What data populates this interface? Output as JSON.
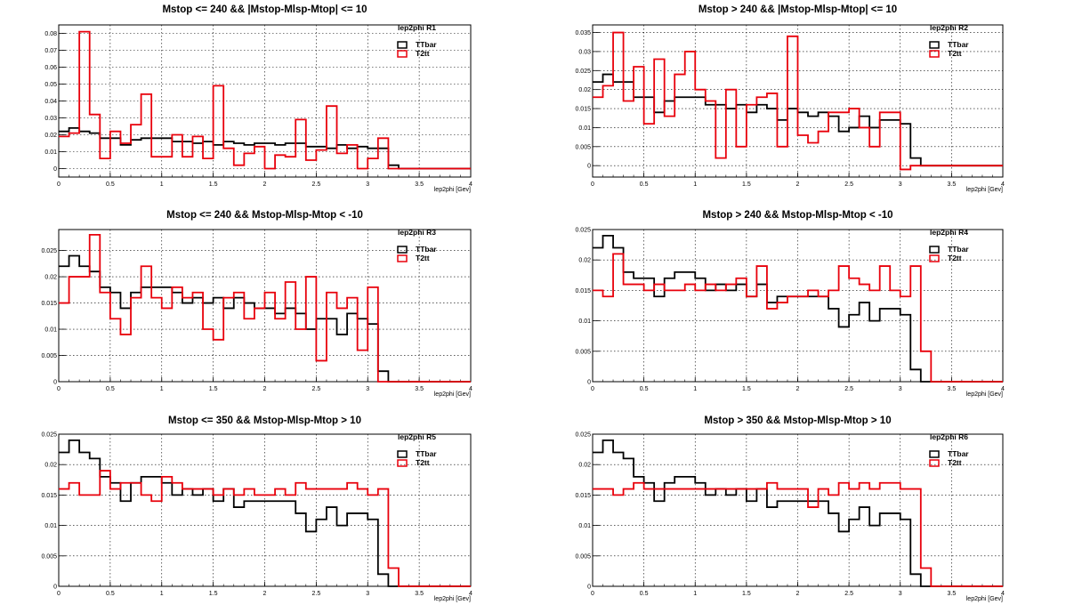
{
  "colors": {
    "TTbar": "#000000",
    "T2tt": "#e8000b",
    "grid": "#000000",
    "frame": "#000000"
  },
  "chart_data": [
    {
      "type": "line",
      "drawstyle": "histogram-step",
      "title": "Mstop <= 240 && |Mstop-Mlsp-Mtop| <= 10",
      "stats_label": "lep2phi  R1",
      "xlabel": "lep2phi [Gev]",
      "ylabel": "",
      "xlim": [
        0,
        4
      ],
      "ylim": [
        -0.005,
        0.085
      ],
      "xticks": [
        "0",
        "0.5",
        "1",
        "1.5",
        "2",
        "2.5",
        "3",
        "3.5",
        "4"
      ],
      "yticks": [
        "0",
        "0.01",
        "0.02",
        "0.03",
        "0.04",
        "0.05",
        "0.06",
        "0.07",
        "0.08"
      ],
      "grid": true,
      "legend_position": "top-right",
      "bin_edges": [
        0,
        0.1,
        0.2,
        0.3,
        0.4,
        0.5,
        0.6,
        0.7,
        0.8,
        0.9,
        1.0,
        1.1,
        1.2,
        1.3,
        1.4,
        1.5,
        1.6,
        1.7,
        1.8,
        1.9,
        2.0,
        2.1,
        2.2,
        2.3,
        2.4,
        2.5,
        2.6,
        2.7,
        2.8,
        2.9,
        3.0,
        3.1,
        3.2,
        3.3,
        3.4,
        3.5,
        3.6,
        3.7,
        3.8,
        3.9,
        4.0
      ],
      "series": [
        {
          "name": "TTbar",
          "values": [
            0.022,
            0.024,
            0.022,
            0.021,
            0.018,
            0.018,
            0.014,
            0.017,
            0.018,
            0.018,
            0.018,
            0.016,
            0.016,
            0.015,
            0.016,
            0.014,
            0.016,
            0.015,
            0.014,
            0.015,
            0.015,
            0.014,
            0.015,
            0.015,
            0.013,
            0.013,
            0.012,
            0.014,
            0.012,
            0.013,
            0.012,
            0.012,
            0.002,
            0,
            0,
            0,
            0,
            0,
            0,
            0
          ]
        },
        {
          "name": "T2tt",
          "values": [
            0.019,
            0.021,
            0.081,
            0.032,
            0.006,
            0.022,
            0.015,
            0.026,
            0.044,
            0.007,
            0.007,
            0.02,
            0.007,
            0.019,
            0.006,
            0.049,
            0.012,
            0.002,
            0.009,
            0.013,
            0.0,
            0.008,
            0.007,
            0.029,
            0.005,
            0.011,
            0.037,
            0.009,
            0.014,
            0.0,
            0.006,
            0.018,
            0,
            0,
            0,
            0,
            0,
            0,
            0,
            0
          ]
        }
      ]
    },
    {
      "type": "line",
      "drawstyle": "histogram-step",
      "title": "Mstop > 240 && |Mstop-Mlsp-Mtop| <= 10",
      "stats_label": "lep2phi  R2",
      "xlabel": "lep2phi [Gev]",
      "ylabel": "",
      "xlim": [
        0,
        4
      ],
      "ylim": [
        -0.003,
        0.037
      ],
      "xticks": [
        "0",
        "0.5",
        "1",
        "1.5",
        "2",
        "2.5",
        "3",
        "3.5",
        "4"
      ],
      "yticks": [
        "0",
        "0.005",
        "0.01",
        "0.015",
        "0.02",
        "0.025",
        "0.03",
        "0.035"
      ],
      "grid": true,
      "legend_position": "top-right",
      "bin_edges": [
        0,
        0.1,
        0.2,
        0.3,
        0.4,
        0.5,
        0.6,
        0.7,
        0.8,
        0.9,
        1.0,
        1.1,
        1.2,
        1.3,
        1.4,
        1.5,
        1.6,
        1.7,
        1.8,
        1.9,
        2.0,
        2.1,
        2.2,
        2.3,
        2.4,
        2.5,
        2.6,
        2.7,
        2.8,
        2.9,
        3.0,
        3.1,
        3.2,
        3.3,
        3.4,
        3.5,
        3.6,
        3.7,
        3.8,
        3.9,
        4.0
      ],
      "series": [
        {
          "name": "TTbar",
          "values": [
            0.022,
            0.024,
            0.022,
            0.022,
            0.018,
            0.018,
            0.014,
            0.017,
            0.018,
            0.018,
            0.018,
            0.016,
            0.016,
            0.015,
            0.016,
            0.014,
            0.016,
            0.015,
            0.012,
            0.015,
            0.014,
            0.013,
            0.014,
            0.013,
            0.009,
            0.01,
            0.013,
            0.01,
            0.012,
            0.012,
            0.011,
            0.002,
            0,
            0,
            0,
            0,
            0,
            0,
            0,
            0
          ]
        },
        {
          "name": "T2tt",
          "values": [
            0.018,
            0.021,
            0.035,
            0.017,
            0.026,
            0.011,
            0.028,
            0.013,
            0.024,
            0.03,
            0.02,
            0.017,
            0.002,
            0.02,
            0.005,
            0.016,
            0.018,
            0.019,
            0.005,
            0.034,
            0.008,
            0.006,
            0.009,
            0.014,
            0.014,
            0.015,
            0.01,
            0.005,
            0.014,
            0.014,
            -0.001,
            0,
            0,
            0,
            0,
            0,
            0,
            0,
            0,
            0
          ]
        }
      ]
    },
    {
      "type": "line",
      "drawstyle": "histogram-step",
      "title": "Mstop <= 240 && Mstop-Mlsp-Mtop < -10",
      "stats_label": "lep2phi  R3",
      "xlabel": "lep2phi [Gev]",
      "ylabel": "",
      "xlim": [
        0,
        4
      ],
      "ylim": [
        0,
        0.029
      ],
      "xticks": [
        "0",
        "0.5",
        "1",
        "1.5",
        "2",
        "2.5",
        "3",
        "3.5",
        "4"
      ],
      "yticks": [
        "0",
        "0.005",
        "0.01",
        "0.015",
        "0.02",
        "0.025"
      ],
      "grid": true,
      "legend_position": "top-right",
      "bin_edges": [
        0,
        0.1,
        0.2,
        0.3,
        0.4,
        0.5,
        0.6,
        0.7,
        0.8,
        0.9,
        1.0,
        1.1,
        1.2,
        1.3,
        1.4,
        1.5,
        1.6,
        1.7,
        1.8,
        1.9,
        2.0,
        2.1,
        2.2,
        2.3,
        2.4,
        2.5,
        2.6,
        2.7,
        2.8,
        2.9,
        3.0,
        3.1,
        3.2,
        3.3,
        3.4,
        3.5,
        3.6,
        3.7,
        3.8,
        3.9,
        4.0
      ],
      "series": [
        {
          "name": "TTbar",
          "values": [
            0.022,
            0.024,
            0.022,
            0.021,
            0.018,
            0.017,
            0.014,
            0.017,
            0.018,
            0.018,
            0.018,
            0.017,
            0.015,
            0.016,
            0.015,
            0.016,
            0.014,
            0.016,
            0.015,
            0.014,
            0.014,
            0.013,
            0.014,
            0.013,
            0.01,
            0.012,
            0.012,
            0.009,
            0.013,
            0.012,
            0.011,
            0.002,
            0,
            0,
            0,
            0,
            0,
            0,
            0,
            0
          ]
        },
        {
          "name": "T2tt",
          "values": [
            0.015,
            0.02,
            0.02,
            0.028,
            0.017,
            0.012,
            0.009,
            0.016,
            0.022,
            0.016,
            0.014,
            0.018,
            0.016,
            0.017,
            0.01,
            0.008,
            0.016,
            0.017,
            0.012,
            0.014,
            0.017,
            0.012,
            0.019,
            0.01,
            0.02,
            0.004,
            0.017,
            0.014,
            0.016,
            0.006,
            0.018,
            0,
            0,
            0,
            0,
            0,
            0,
            0,
            0,
            0
          ]
        }
      ]
    },
    {
      "type": "line",
      "drawstyle": "histogram-step",
      "title": "Mstop > 240 && Mstop-Mlsp-Mtop < -10",
      "stats_label": "lep2phi  R4",
      "xlabel": "lep2phi [Gev]",
      "ylabel": "",
      "xlim": [
        0,
        4
      ],
      "ylim": [
        0,
        0.025
      ],
      "xticks": [
        "0",
        "0.5",
        "1",
        "1.5",
        "2",
        "2.5",
        "3",
        "3.5",
        "4"
      ],
      "yticks": [
        "0",
        "0.005",
        "0.01",
        "0.015",
        "0.02",
        "0.025"
      ],
      "grid": true,
      "legend_position": "top-right",
      "bin_edges": [
        0,
        0.1,
        0.2,
        0.3,
        0.4,
        0.5,
        0.6,
        0.7,
        0.8,
        0.9,
        1.0,
        1.1,
        1.2,
        1.3,
        1.4,
        1.5,
        1.6,
        1.7,
        1.8,
        1.9,
        2.0,
        2.1,
        2.2,
        2.3,
        2.4,
        2.5,
        2.6,
        2.7,
        2.8,
        2.9,
        3.0,
        3.1,
        3.2,
        3.3,
        3.4,
        3.5,
        3.6,
        3.7,
        3.8,
        3.9,
        4.0
      ],
      "series": [
        {
          "name": "TTbar",
          "values": [
            0.022,
            0.024,
            0.022,
            0.018,
            0.017,
            0.017,
            0.014,
            0.017,
            0.018,
            0.018,
            0.017,
            0.015,
            0.016,
            0.015,
            0.016,
            0.014,
            0.016,
            0.013,
            0.014,
            0.014,
            0.014,
            0.014,
            0.014,
            0.012,
            0.009,
            0.011,
            0.013,
            0.01,
            0.012,
            0.012,
            0.011,
            0.002,
            0,
            0,
            0,
            0,
            0,
            0,
            0,
            0
          ]
        },
        {
          "name": "T2tt",
          "values": [
            0.015,
            0.014,
            0.021,
            0.016,
            0.016,
            0.015,
            0.016,
            0.015,
            0.015,
            0.016,
            0.015,
            0.016,
            0.015,
            0.016,
            0.017,
            0.014,
            0.019,
            0.012,
            0.013,
            0.014,
            0.014,
            0.015,
            0.014,
            0.015,
            0.019,
            0.017,
            0.016,
            0.015,
            0.019,
            0.015,
            0.014,
            0.019,
            0.005,
            0,
            0,
            0,
            0,
            0,
            0,
            0
          ]
        }
      ]
    },
    {
      "type": "line",
      "drawstyle": "histogram-step",
      "title": "Mstop <= 350 && Mstop-Mlsp-Mtop > 10",
      "stats_label": "lep2phi  R5",
      "xlabel": "lep2phi [Gev]",
      "ylabel": "",
      "xlim": [
        0,
        4
      ],
      "ylim": [
        0,
        0.025
      ],
      "xticks": [
        "0",
        "0.5",
        "1",
        "1.5",
        "2",
        "2.5",
        "3",
        "3.5",
        "4"
      ],
      "yticks": [
        "0",
        "0.005",
        "0.01",
        "0.015",
        "0.02",
        "0.025"
      ],
      "grid": true,
      "legend_position": "top-right",
      "bin_edges": [
        0,
        0.1,
        0.2,
        0.3,
        0.4,
        0.5,
        0.6,
        0.7,
        0.8,
        0.9,
        1.0,
        1.1,
        1.2,
        1.3,
        1.4,
        1.5,
        1.6,
        1.7,
        1.8,
        1.9,
        2.0,
        2.1,
        2.2,
        2.3,
        2.4,
        2.5,
        2.6,
        2.7,
        2.8,
        2.9,
        3.0,
        3.1,
        3.2,
        3.3,
        3.4,
        3.5,
        3.6,
        3.7,
        3.8,
        3.9,
        4.0
      ],
      "series": [
        {
          "name": "TTbar",
          "values": [
            0.022,
            0.024,
            0.022,
            0.021,
            0.018,
            0.017,
            0.014,
            0.017,
            0.018,
            0.018,
            0.017,
            0.015,
            0.016,
            0.015,
            0.016,
            0.014,
            0.016,
            0.013,
            0.014,
            0.014,
            0.014,
            0.014,
            0.014,
            0.012,
            0.009,
            0.011,
            0.013,
            0.01,
            0.012,
            0.012,
            0.011,
            0.002,
            0,
            0,
            0,
            0,
            0,
            0,
            0,
            0
          ]
        },
        {
          "name": "T2tt",
          "values": [
            0.016,
            0.017,
            0.015,
            0.015,
            0.019,
            0.016,
            0.017,
            0.017,
            0.015,
            0.014,
            0.018,
            0.017,
            0.016,
            0.016,
            0.016,
            0.015,
            0.016,
            0.015,
            0.016,
            0.015,
            0.015,
            0.016,
            0.015,
            0.017,
            0.016,
            0.016,
            0.016,
            0.016,
            0.017,
            0.016,
            0.015,
            0.016,
            0.003,
            0,
            0,
            0,
            0,
            0,
            0,
            0
          ]
        }
      ]
    },
    {
      "type": "line",
      "drawstyle": "histogram-step",
      "title": "Mstop > 350 && Mstop-Mlsp-Mtop > 10",
      "stats_label": "lep2phi  R6",
      "xlabel": "lep2phi [Gev]",
      "ylabel": "",
      "xlim": [
        0,
        4
      ],
      "ylim": [
        0,
        0.025
      ],
      "xticks": [
        "0",
        "0.5",
        "1",
        "1.5",
        "2",
        "2.5",
        "3",
        "3.5",
        "4"
      ],
      "yticks": [
        "0",
        "0.005",
        "0.01",
        "0.015",
        "0.02",
        "0.025"
      ],
      "grid": true,
      "legend_position": "top-right",
      "bin_edges": [
        0,
        0.1,
        0.2,
        0.3,
        0.4,
        0.5,
        0.6,
        0.7,
        0.8,
        0.9,
        1.0,
        1.1,
        1.2,
        1.3,
        1.4,
        1.5,
        1.6,
        1.7,
        1.8,
        1.9,
        2.0,
        2.1,
        2.2,
        2.3,
        2.4,
        2.5,
        2.6,
        2.7,
        2.8,
        2.9,
        3.0,
        3.1,
        3.2,
        3.3,
        3.4,
        3.5,
        3.6,
        3.7,
        3.8,
        3.9,
        4.0
      ],
      "series": [
        {
          "name": "TTbar",
          "values": [
            0.022,
            0.024,
            0.022,
            0.021,
            0.018,
            0.017,
            0.014,
            0.017,
            0.018,
            0.018,
            0.017,
            0.015,
            0.016,
            0.015,
            0.016,
            0.014,
            0.016,
            0.013,
            0.014,
            0.014,
            0.014,
            0.014,
            0.014,
            0.012,
            0.009,
            0.011,
            0.013,
            0.01,
            0.012,
            0.012,
            0.011,
            0.002,
            0,
            0,
            0,
            0,
            0,
            0,
            0,
            0
          ]
        },
        {
          "name": "T2tt",
          "values": [
            0.016,
            0.016,
            0.015,
            0.016,
            0.017,
            0.016,
            0.016,
            0.016,
            0.016,
            0.016,
            0.016,
            0.016,
            0.016,
            0.016,
            0.016,
            0.016,
            0.016,
            0.017,
            0.016,
            0.016,
            0.016,
            0.013,
            0.016,
            0.015,
            0.017,
            0.016,
            0.017,
            0.016,
            0.017,
            0.017,
            0.016,
            0.016,
            0.003,
            0,
            0,
            0,
            0,
            0,
            0,
            0
          ]
        }
      ]
    }
  ]
}
